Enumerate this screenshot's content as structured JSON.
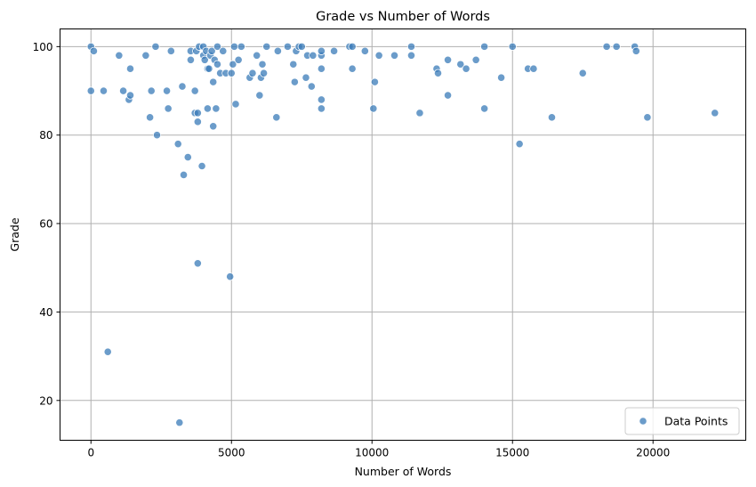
{
  "chart_data": {
    "type": "scatter",
    "title": "Grade vs Number of Words",
    "xlabel": "Number of Words",
    "ylabel": "Grade",
    "xlim": [
      -1100,
      23300
    ],
    "ylim": [
      11,
      104
    ],
    "xticks": [
      0,
      5000,
      10000,
      15000,
      20000
    ],
    "yticks": [
      20,
      40,
      60,
      80,
      100
    ],
    "grid": true,
    "legend_position": "lower right",
    "series": [
      {
        "name": "Data Points",
        "color": "#3a7bb8",
        "points": [
          [
            0,
            100
          ],
          [
            100,
            99
          ],
          [
            0,
            90
          ],
          [
            450,
            90
          ],
          [
            600,
            31
          ],
          [
            1000,
            98
          ],
          [
            1150,
            90
          ],
          [
            1350,
            88
          ],
          [
            1400,
            89
          ],
          [
            1400,
            95
          ],
          [
            1950,
            98
          ],
          [
            2100,
            84
          ],
          [
            2150,
            90
          ],
          [
            2300,
            100
          ],
          [
            2350,
            80
          ],
          [
            2700,
            90
          ],
          [
            2750,
            86
          ],
          [
            2850,
            99
          ],
          [
            3100,
            78
          ],
          [
            3150,
            15
          ],
          [
            3250,
            91
          ],
          [
            3300,
            71
          ],
          [
            3450,
            75
          ],
          [
            3550,
            97
          ],
          [
            3550,
            99
          ],
          [
            3700,
            85
          ],
          [
            3700,
            90
          ],
          [
            3750,
            99
          ],
          [
            3800,
            51
          ],
          [
            3800,
            85
          ],
          [
            3800,
            83
          ],
          [
            3850,
            100
          ],
          [
            3950,
            73
          ],
          [
            4000,
            100
          ],
          [
            4000,
            98
          ],
          [
            4050,
            97
          ],
          [
            4100,
            99
          ],
          [
            4150,
            95
          ],
          [
            4150,
            86
          ],
          [
            4200,
            95
          ],
          [
            4250,
            98
          ],
          [
            4300,
            99
          ],
          [
            4350,
            92
          ],
          [
            4350,
            82
          ],
          [
            4400,
            97
          ],
          [
            4450,
            86
          ],
          [
            4500,
            100
          ],
          [
            4500,
            96
          ],
          [
            4600,
            94
          ],
          [
            4700,
            99
          ],
          [
            4800,
            94
          ],
          [
            4950,
            48
          ],
          [
            5000,
            94
          ],
          [
            5050,
            96
          ],
          [
            5100,
            100
          ],
          [
            5150,
            87
          ],
          [
            5250,
            97
          ],
          [
            5350,
            100
          ],
          [
            5650,
            93
          ],
          [
            5750,
            94
          ],
          [
            5900,
            98
          ],
          [
            6000,
            89
          ],
          [
            6050,
            93
          ],
          [
            6100,
            96
          ],
          [
            6150,
            94
          ],
          [
            6250,
            100
          ],
          [
            6600,
            84
          ],
          [
            6650,
            99
          ],
          [
            7000,
            100
          ],
          [
            7200,
            96
          ],
          [
            7250,
            92
          ],
          [
            7300,
            99
          ],
          [
            7400,
            100
          ],
          [
            7500,
            100
          ],
          [
            7650,
            93
          ],
          [
            7700,
            98
          ],
          [
            7850,
            91
          ],
          [
            7900,
            98
          ],
          [
            8200,
            98
          ],
          [
            8200,
            99
          ],
          [
            8200,
            95
          ],
          [
            8200,
            88
          ],
          [
            8200,
            86
          ],
          [
            8650,
            99
          ],
          [
            9200,
            100
          ],
          [
            9300,
            100
          ],
          [
            9300,
            95
          ],
          [
            9750,
            99
          ],
          [
            10050,
            86
          ],
          [
            10100,
            92
          ],
          [
            10250,
            98
          ],
          [
            10800,
            98
          ],
          [
            11400,
            100
          ],
          [
            11400,
            98
          ],
          [
            11700,
            85
          ],
          [
            12300,
            95
          ],
          [
            12350,
            94
          ],
          [
            12700,
            97
          ],
          [
            12700,
            89
          ],
          [
            13150,
            96
          ],
          [
            13350,
            95
          ],
          [
            13700,
            97
          ],
          [
            14000,
            100
          ],
          [
            14000,
            86
          ],
          [
            14600,
            93
          ],
          [
            15000,
            100
          ],
          [
            15250,
            78
          ],
          [
            15550,
            95
          ],
          [
            15750,
            95
          ],
          [
            16400,
            84
          ],
          [
            17500,
            94
          ],
          [
            18350,
            100
          ],
          [
            18700,
            100
          ],
          [
            19350,
            100
          ],
          [
            19400,
            99
          ],
          [
            19800,
            84
          ],
          [
            22200,
            85
          ]
        ]
      }
    ]
  }
}
